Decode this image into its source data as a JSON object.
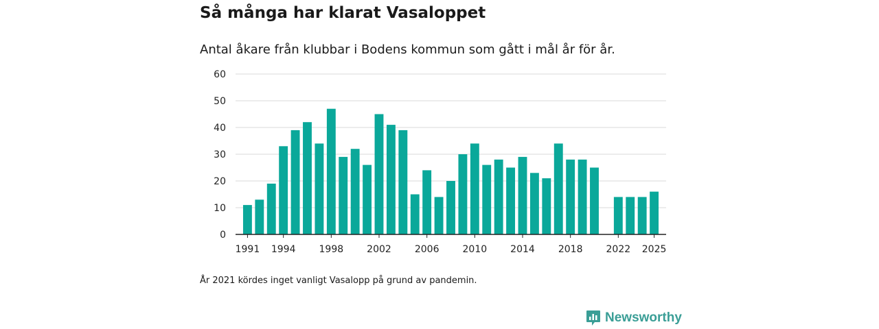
{
  "colors": {
    "bar": "#0aa89a",
    "grid": "#d9d9d9",
    "axis": "#222222",
    "brand": "#3a9e96"
  },
  "brand": {
    "name": "Newsworthy",
    "icon": "newsworthy-logo-icon"
  },
  "note": "År 2021 kördes inget vanligt Vasalopp på grund av pandemin.",
  "chart_data": {
    "type": "bar",
    "title": "Så många har klarat Vasaloppet",
    "subtitle": "Antal åkare från klubbar i Bodens kommun som gått i mål år för år.",
    "xlabel": "",
    "ylabel": "",
    "ylim": [
      0,
      60
    ],
    "yticks": [
      0,
      10,
      20,
      30,
      40,
      50,
      60
    ],
    "xlim": [
      1990,
      2026
    ],
    "xticks": [
      "1991",
      "1994",
      "1998",
      "2002",
      "2006",
      "2010",
      "2014",
      "2018",
      "2022",
      "2025"
    ],
    "grid": true,
    "x": [
      1991,
      1992,
      1993,
      1994,
      1995,
      1996,
      1997,
      1998,
      1999,
      2000,
      2001,
      2002,
      2003,
      2004,
      2005,
      2006,
      2007,
      2008,
      2009,
      2010,
      2011,
      2012,
      2013,
      2014,
      2015,
      2016,
      2017,
      2018,
      2019,
      2020,
      2022,
      2023,
      2024,
      2025
    ],
    "values": [
      11,
      13,
      19,
      33,
      39,
      42,
      34,
      47,
      29,
      32,
      26,
      45,
      41,
      39,
      15,
      24,
      14,
      20,
      30,
      34,
      26,
      28,
      25,
      29,
      23,
      21,
      34,
      28,
      28,
      25,
      14,
      14,
      14,
      16
    ]
  }
}
